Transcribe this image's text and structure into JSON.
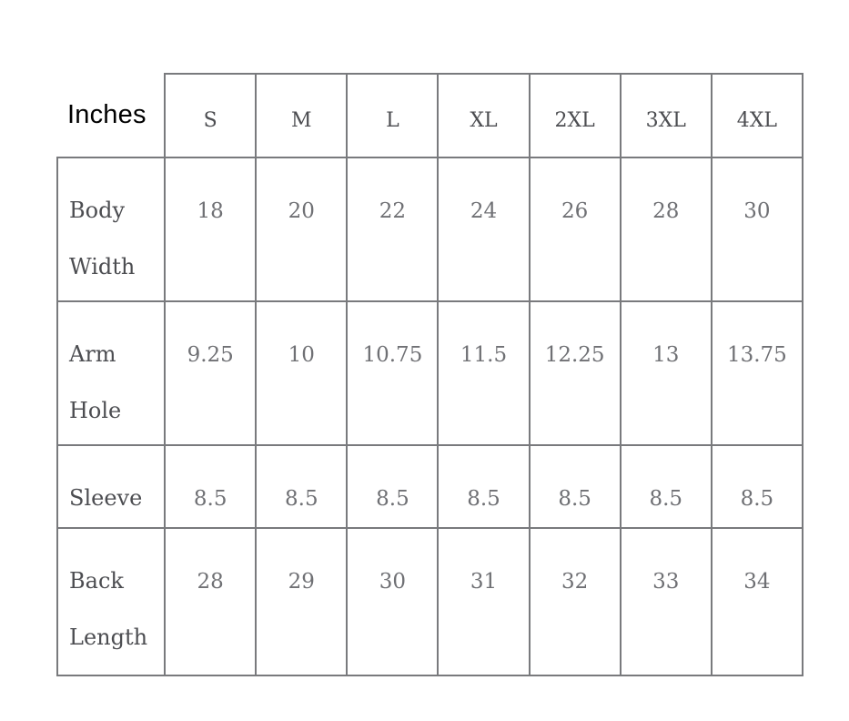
{
  "chart_data": {
    "type": "table",
    "title": "Inches",
    "columns": [
      "S",
      "M",
      "L",
      "XL",
      "2XL",
      "3XL",
      "4XL"
    ],
    "rows": [
      {
        "label": "Body Width",
        "values": [
          "18",
          "20",
          "22",
          "24",
          "26",
          "28",
          "30"
        ]
      },
      {
        "label": "Arm Hole",
        "values": [
          "9.25",
          "10",
          "10.75",
          "11.5",
          "12.25",
          "13",
          "13.75"
        ]
      },
      {
        "label": "Sleeve",
        "values": [
          "8.5",
          "8.5",
          "8.5",
          "8.5",
          "8.5",
          "8.5",
          "8.5"
        ]
      },
      {
        "label": "Back Length",
        "values": [
          "28",
          "29",
          "30",
          "31",
          "32",
          "33",
          "34"
        ]
      }
    ],
    "layout": {
      "legend": "none",
      "grid": "full-borders",
      "corner_cell_borderless": true
    },
    "colors": {
      "border": "#797a7d",
      "header_text": "#4c4d51",
      "row_label_text": "#4c4d51",
      "value_text": "#6f7074",
      "unit_label_text": "#000000",
      "background": "#ffffff"
    }
  }
}
